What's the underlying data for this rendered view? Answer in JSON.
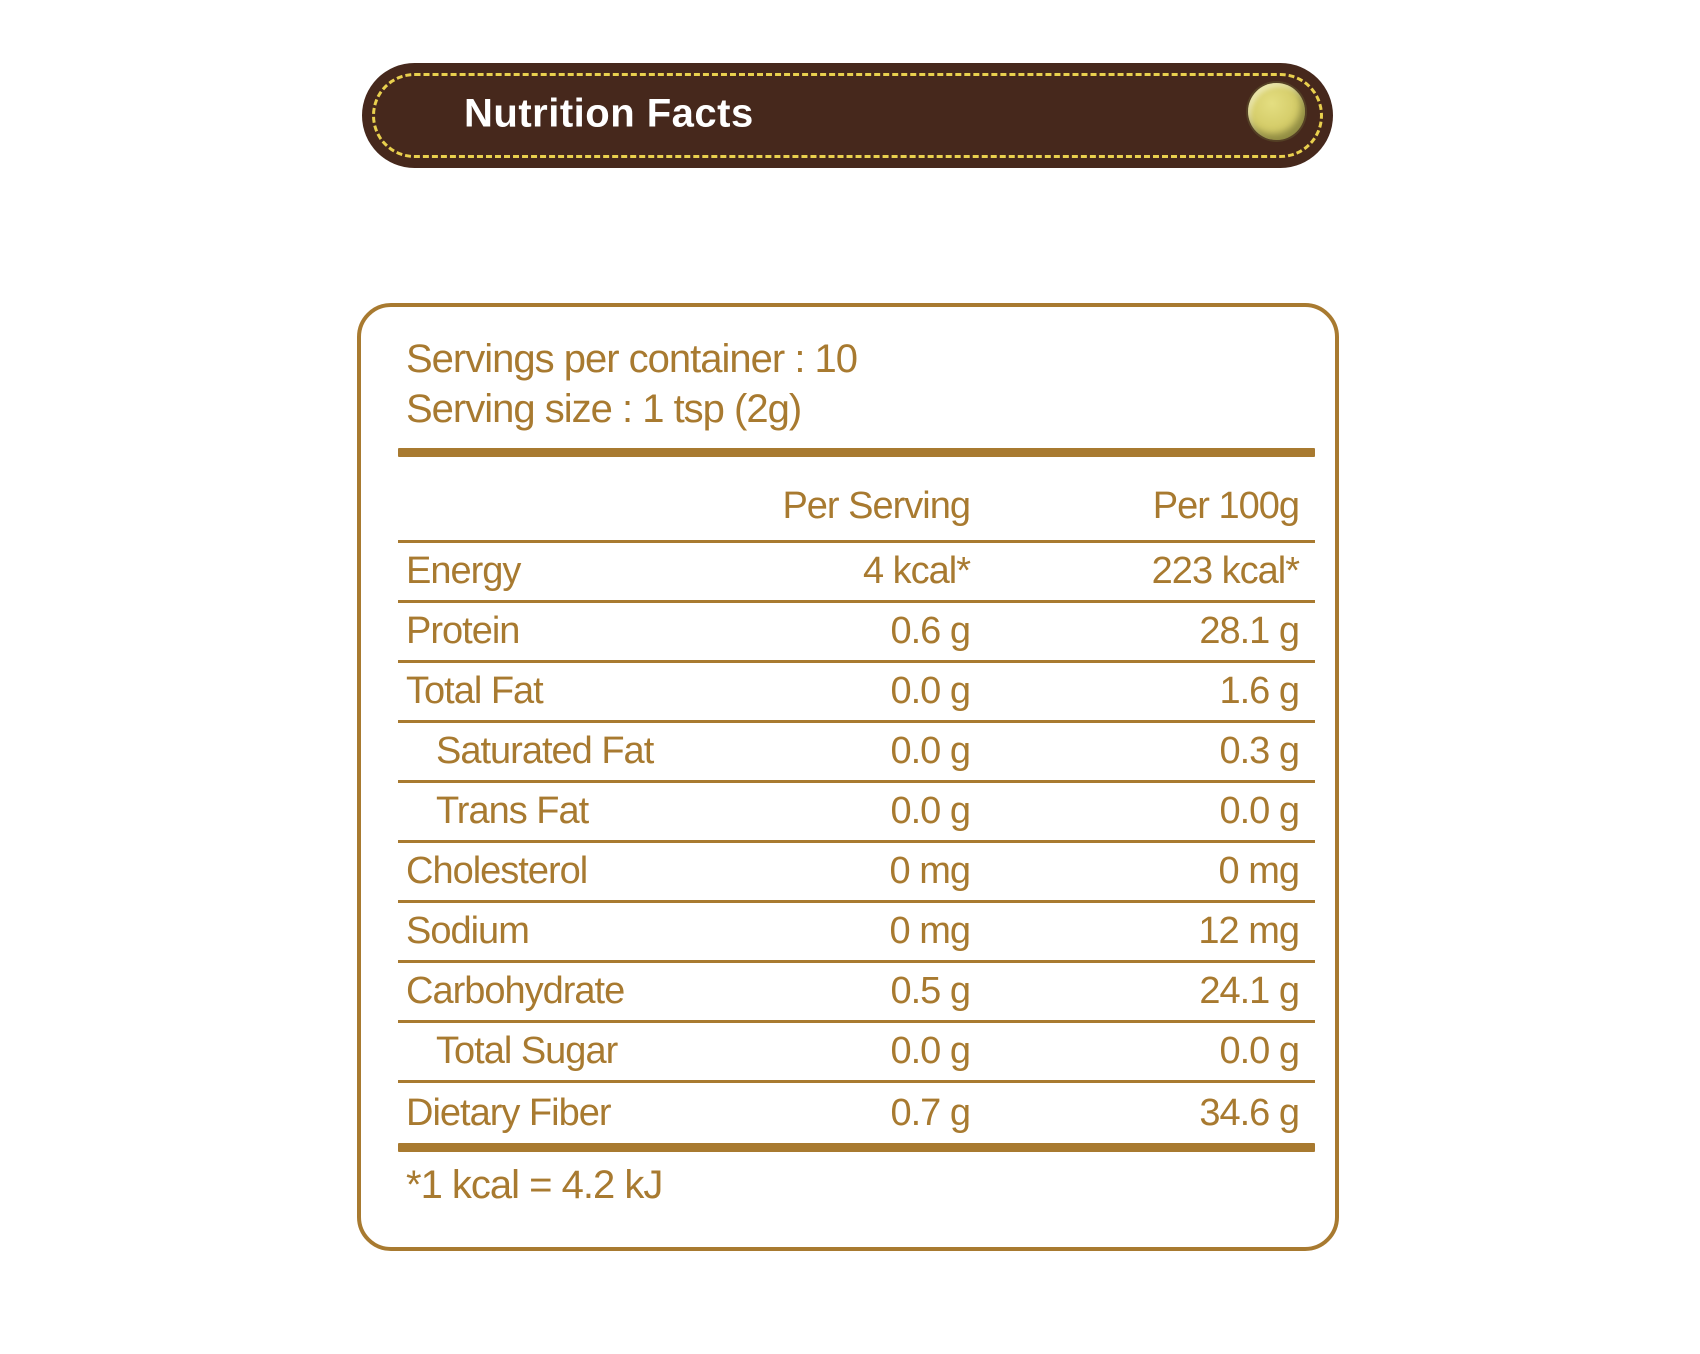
{
  "banner": {
    "title": "Nutrition Facts"
  },
  "panel": {
    "servings_line": "Servings per container : 10",
    "serving_size_line": "Serving size : 1 tsp (2g)",
    "columns": [
      "Per Serving",
      "Per 100g"
    ],
    "rows": [
      {
        "label": "Energy",
        "per_serving": "4 kcal*",
        "per_100g": "223 kcal*",
        "indent": false
      },
      {
        "label": "Protein",
        "per_serving": "0.6 g",
        "per_100g": "28.1 g",
        "indent": false
      },
      {
        "label": "Total Fat",
        "per_serving": "0.0 g",
        "per_100g": "1.6 g",
        "indent": false
      },
      {
        "label": "Saturated Fat",
        "per_serving": "0.0 g",
        "per_100g": "0.3 g",
        "indent": true
      },
      {
        "label": "Trans Fat",
        "per_serving": "0.0 g",
        "per_100g": "0.0 g",
        "indent": true
      },
      {
        "label": "Cholesterol",
        "per_serving": "0 mg",
        "per_100g": "0 mg",
        "indent": false
      },
      {
        "label": "Sodium",
        "per_serving": "0 mg",
        "per_100g": "12 mg",
        "indent": false
      },
      {
        "label": "Carbohydrate",
        "per_serving": "0.5 g",
        "per_100g": "24.1 g",
        "indent": false
      },
      {
        "label": "Total Sugar",
        "per_serving": "0.0 g",
        "per_100g": "0.0 g",
        "indent": true
      },
      {
        "label": "Dietary Fiber",
        "per_serving": "0.7 g",
        "per_100g": "34.6 g",
        "indent": false
      }
    ],
    "footnote": "*1 kcal = 4.2 kJ"
  },
  "colors": {
    "accent_brown": "#a87a30",
    "banner_bg": "#46281c",
    "stitch_yellow": "#e9d04e",
    "title_white": "#ffffff",
    "dot_main": "#d5cd6a",
    "dot_rim": "#8f8e43",
    "dot_highlight": "#e4de81"
  }
}
